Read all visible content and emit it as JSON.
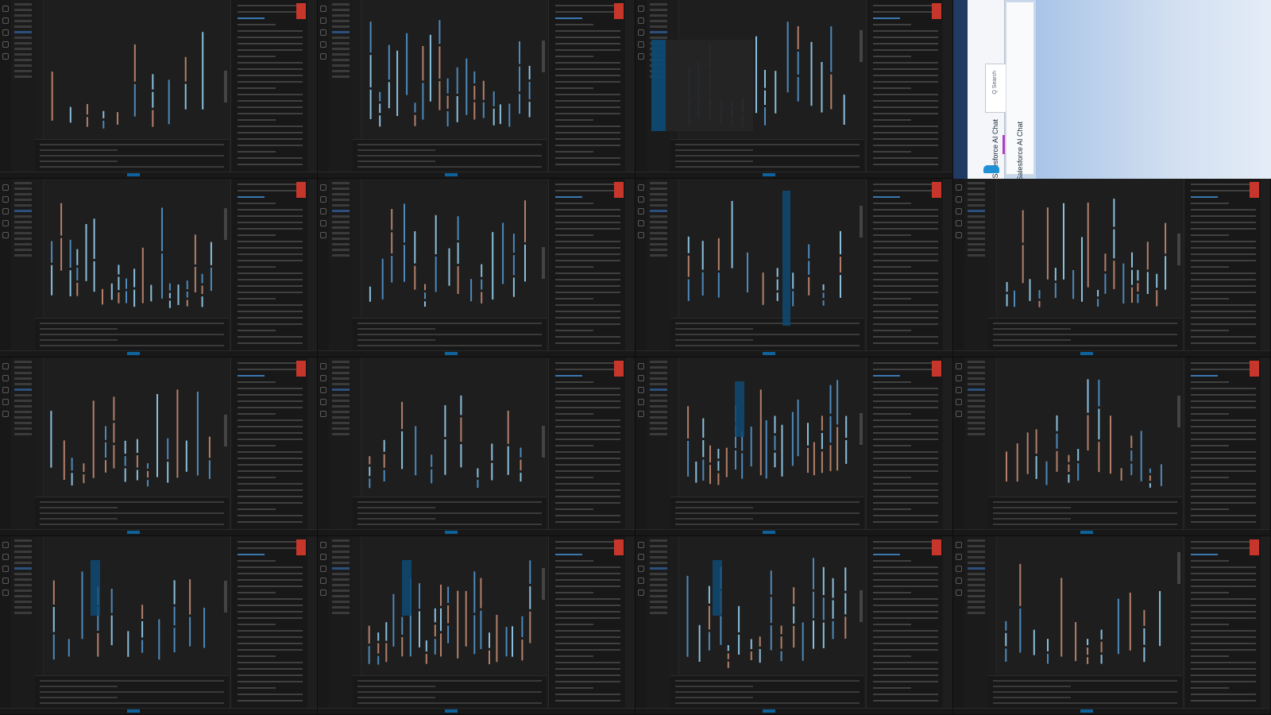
{
  "screen": {
    "layout": "4x4 grid of VS Code window captures with a browser window in the top-right cell",
    "tile_count": 15
  },
  "tiles": [
    {
      "id": 1,
      "overlay": "none"
    },
    {
      "id": 2,
      "overlay": "none"
    },
    {
      "id": 3,
      "overlay": "dropdown"
    },
    {
      "id": 4,
      "overlay": "none"
    },
    {
      "id": 5,
      "overlay": "none"
    },
    {
      "id": 6,
      "overlay": "none"
    },
    {
      "id": 7,
      "overlay": "hover"
    },
    {
      "id": 8,
      "overlay": "none"
    },
    {
      "id": 9,
      "overlay": "none"
    },
    {
      "id": 10,
      "overlay": "none"
    },
    {
      "id": 11,
      "overlay": "selection"
    },
    {
      "id": 12,
      "overlay": "none"
    },
    {
      "id": 13,
      "overlay": "selection"
    },
    {
      "id": 14,
      "overlay": "selection"
    },
    {
      "id": 15,
      "overlay": "selection"
    }
  ],
  "browser": {
    "label_left": "Salesforce AI Chat",
    "label_card": "Salesforce AI Chat",
    "search_placeholder": "Q Search"
  },
  "colors": {
    "editor_bg": "#1e1e1e",
    "accent_blue": "#0e639c",
    "badge_red": "#c6362b",
    "code_orange": "#ce9178",
    "code_blue": "#569cd6",
    "code_light_blue": "#9cdcfe",
    "browser_bg": "#c7d8ee"
  }
}
